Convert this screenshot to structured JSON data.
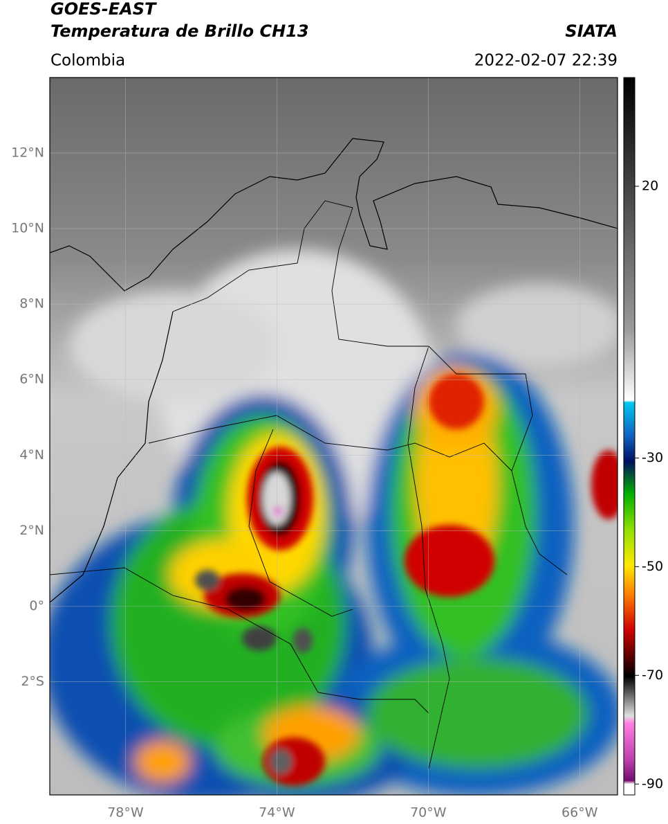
{
  "header": {
    "title": "GOES-EAST",
    "subtitle": "Temperatura de Brillo CH13",
    "source": "SIATA",
    "region": "Colombia",
    "timestamp": "2022-02-07 22:39"
  },
  "map": {
    "xlim": [
      -80,
      -65
    ],
    "ylim": [
      -5,
      14
    ],
    "lat_ticks": [
      {
        "value": 12,
        "label": "12°N"
      },
      {
        "value": 10,
        "label": "10°N"
      },
      {
        "value": 8,
        "label": "8°N"
      },
      {
        "value": 6,
        "label": "6°N"
      },
      {
        "value": 4,
        "label": "4°N"
      },
      {
        "value": 2,
        "label": "2°N"
      },
      {
        "value": 0,
        "label": "0°"
      },
      {
        "value": -2,
        "label": "2°S"
      }
    ],
    "lon_ticks": [
      {
        "value": -78,
        "label": "78°W"
      },
      {
        "value": -74,
        "label": "74°W"
      },
      {
        "value": -70,
        "label": "70°W"
      },
      {
        "value": -66,
        "label": "66°W"
      }
    ]
  },
  "colorbar": {
    "range": [
      -92,
      40
    ],
    "ticks": [
      20,
      -30,
      -50,
      -70,
      -90
    ]
  }
}
